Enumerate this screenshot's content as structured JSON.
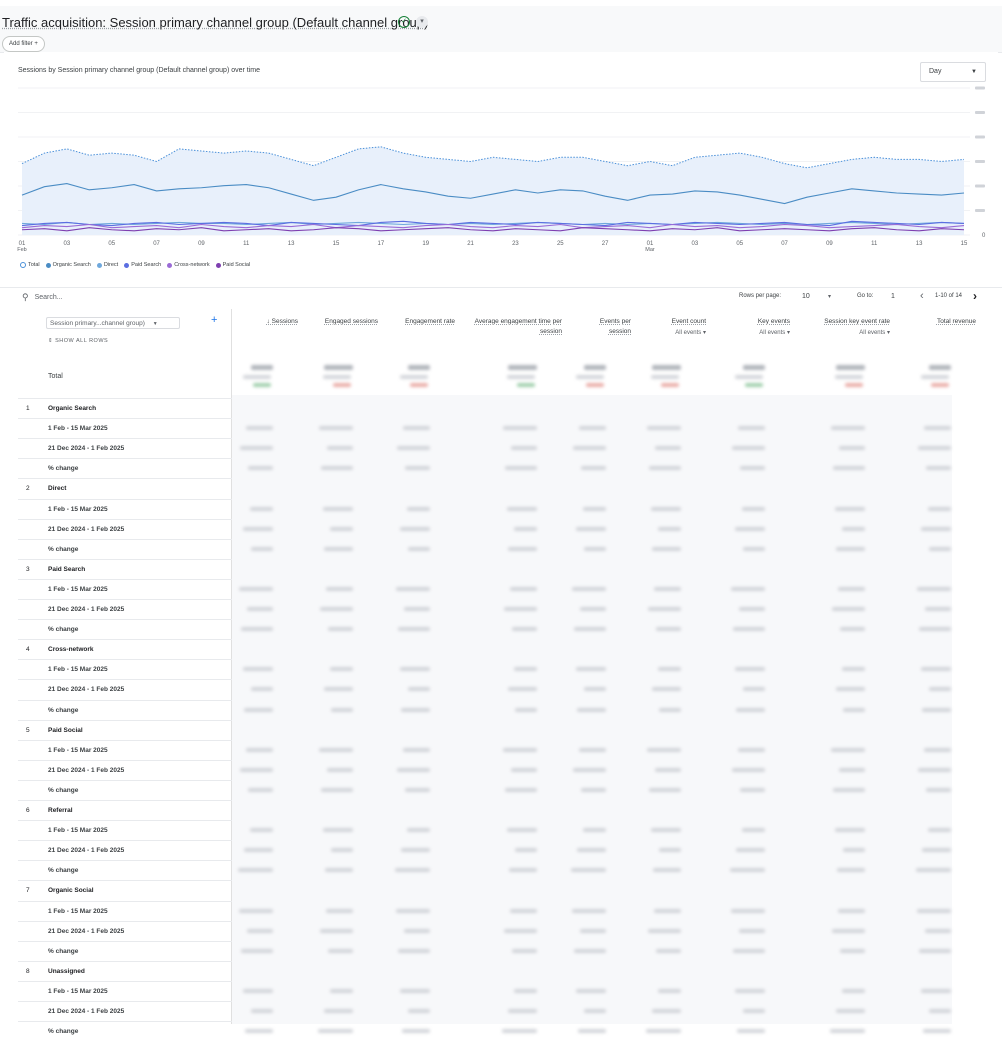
{
  "header": {
    "title": "Traffic acquisition: Session primary channel group (Default channel group)",
    "add_filter": "Add filter +"
  },
  "chart_card": {
    "title": "Sessions by Session primary channel group (Default channel group) over time",
    "granularity": "Day",
    "x_ticks": [
      {
        "d": "01",
        "m": "Feb"
      },
      {
        "d": "03",
        "m": ""
      },
      {
        "d": "05",
        "m": ""
      },
      {
        "d": "07",
        "m": ""
      },
      {
        "d": "09",
        "m": ""
      },
      {
        "d": "11",
        "m": ""
      },
      {
        "d": "13",
        "m": ""
      },
      {
        "d": "15",
        "m": ""
      },
      {
        "d": "17",
        "m": ""
      },
      {
        "d": "19",
        "m": ""
      },
      {
        "d": "21",
        "m": ""
      },
      {
        "d": "23",
        "m": ""
      },
      {
        "d": "25",
        "m": ""
      },
      {
        "d": "27",
        "m": ""
      },
      {
        "d": "01",
        "m": "Mar"
      },
      {
        "d": "03",
        "m": ""
      },
      {
        "d": "05",
        "m": ""
      },
      {
        "d": "07",
        "m": ""
      },
      {
        "d": "09",
        "m": ""
      },
      {
        "d": "11",
        "m": ""
      },
      {
        "d": "13",
        "m": ""
      },
      {
        "d": "15",
        "m": ""
      }
    ],
    "legend": [
      {
        "label": "Total",
        "color": "#4a90d9",
        "hollow": true
      },
      {
        "label": "Organic Search",
        "color": "#4a8cc4",
        "hollow": false
      },
      {
        "label": "Direct",
        "color": "#6fa8dc",
        "hollow": false
      },
      {
        "label": "Paid Search",
        "color": "#5b6ee1",
        "hollow": false
      },
      {
        "label": "Cross-network",
        "color": "#9b6bd6",
        "hollow": false
      },
      {
        "label": "Paid Social",
        "color": "#7e3fb0",
        "hollow": false
      }
    ]
  },
  "chart_data": {
    "type": "line",
    "x": [
      "01 Feb",
      "02 Feb",
      "03 Feb",
      "04 Feb",
      "05 Feb",
      "06 Feb",
      "07 Feb",
      "08 Feb",
      "09 Feb",
      "10 Feb",
      "11 Feb",
      "12 Feb",
      "13 Feb",
      "14 Feb",
      "15 Feb",
      "16 Feb",
      "17 Feb",
      "18 Feb",
      "19 Feb",
      "20 Feb",
      "21 Feb",
      "22 Feb",
      "23 Feb",
      "24 Feb",
      "25 Feb",
      "26 Feb",
      "27 Feb",
      "28 Feb",
      "01 Mar",
      "02 Mar",
      "03 Mar",
      "04 Mar",
      "05 Mar",
      "06 Mar",
      "07 Mar",
      "08 Mar",
      "09 Mar",
      "10 Mar",
      "11 Mar",
      "12 Mar",
      "13 Mar",
      "14 Mar",
      "15 Mar"
    ],
    "series": [
      {
        "name": "Total",
        "values": [
          68,
          78,
          82,
          76,
          78,
          76,
          70,
          82,
          80,
          78,
          80,
          78,
          72,
          66,
          74,
          82,
          84,
          78,
          74,
          72,
          70,
          74,
          72,
          70,
          74,
          74,
          70,
          66,
          70,
          66,
          74,
          76,
          78,
          74,
          68,
          64,
          68,
          72,
          74,
          72,
          72,
          70,
          72
        ]
      },
      {
        "name": "Organic Search",
        "values": [
          38,
          46,
          49,
          43,
          45,
          48,
          42,
          44,
          45,
          47,
          48,
          45,
          39,
          33,
          36,
          43,
          48,
          44,
          41,
          37,
          35,
          39,
          43,
          40,
          43,
          42,
          37,
          33,
          38,
          39,
          42,
          41,
          38,
          34,
          30,
          36,
          40,
          44,
          42,
          40,
          39,
          38,
          40
        ]
      },
      {
        "name": "Direct",
        "values": [
          11,
          10,
          12,
          10,
          11,
          10,
          11,
          12,
          11,
          11,
          10,
          11,
          12,
          10,
          11,
          12,
          11,
          10,
          11,
          10,
          11,
          10,
          11,
          12,
          11,
          10,
          11,
          10,
          11,
          10,
          11,
          12,
          11,
          10,
          11,
          10,
          11,
          12,
          11,
          10,
          11,
          12,
          11
        ]
      },
      {
        "name": "Paid Search",
        "values": [
          9,
          11,
          12,
          10,
          9,
          11,
          12,
          10,
          11,
          12,
          11,
          9,
          12,
          11,
          10,
          9,
          12,
          13,
          11,
          10,
          12,
          11,
          10,
          12,
          11,
          10,
          9,
          12,
          11,
          10,
          12,
          11,
          10,
          11,
          12,
          10,
          9,
          13,
          12,
          11,
          10,
          12,
          11
        ]
      },
      {
        "name": "Cross-network",
        "values": [
          7,
          9,
          8,
          10,
          7,
          8,
          9,
          7,
          10,
          8,
          7,
          9,
          8,
          10,
          7,
          9,
          8,
          7,
          9,
          10,
          8,
          7,
          9,
          8,
          10,
          7,
          8,
          9,
          7,
          10,
          8,
          9,
          7,
          8,
          10,
          9,
          7,
          8,
          9,
          10,
          8,
          7,
          9
        ]
      },
      {
        "name": "Paid Social",
        "values": [
          5,
          6,
          4,
          7,
          5,
          4,
          6,
          5,
          7,
          4,
          5,
          6,
          4,
          5,
          7,
          6,
          4,
          5,
          6,
          7,
          5,
          4,
          6,
          5,
          4,
          7,
          6,
          5,
          4,
          6,
          5,
          7,
          4,
          5,
          6,
          5,
          4,
          6,
          7,
          5,
          4,
          6,
          5
        ]
      }
    ],
    "y_ticks": [
      "0",
      "",
      "",
      "",
      "",
      "",
      "",
      ""
    ],
    "grid": true,
    "ylim": [
      0,
      140
    ]
  },
  "toolbar": {
    "search_placeholder": "Search...",
    "rows_per_page_label": "Rows per page:",
    "rows_per_page": "10",
    "go_to_label": "Go to:",
    "go_to_value": "1",
    "range": "1-10 of 14"
  },
  "table": {
    "dimension_selector": "Session primary...channel group)",
    "show_all_rows": "SHOW ALL ROWS",
    "total_label": "Total",
    "columns": [
      {
        "label": "↓ Sessions",
        "sub": ""
      },
      {
        "label": "Engaged sessions",
        "sub": ""
      },
      {
        "label": "Engagement rate",
        "sub": ""
      },
      {
        "label": "Average engagement time per session",
        "sub": ""
      },
      {
        "label": "Events per session",
        "sub": ""
      },
      {
        "label": "Event count",
        "sub": "All events"
      },
      {
        "label": "Key events",
        "sub": "All events"
      },
      {
        "label": "Session key event rate",
        "sub": "All events"
      },
      {
        "label": "Total revenue",
        "sub": ""
      }
    ],
    "channels": [
      {
        "num": "1",
        "name": "Organic Search"
      },
      {
        "num": "2",
        "name": "Direct"
      },
      {
        "num": "3",
        "name": "Paid Search"
      },
      {
        "num": "4",
        "name": "Cross-network"
      },
      {
        "num": "5",
        "name": "Paid Social"
      },
      {
        "num": "6",
        "name": "Referral"
      },
      {
        "num": "7",
        "name": "Organic Social"
      },
      {
        "num": "8",
        "name": "Unassigned"
      }
    ],
    "period_current": "1 Feb - 15 Mar 2025",
    "period_previous": "21 Dec 2024 - 1 Feb 2025",
    "change_label": "% change"
  }
}
